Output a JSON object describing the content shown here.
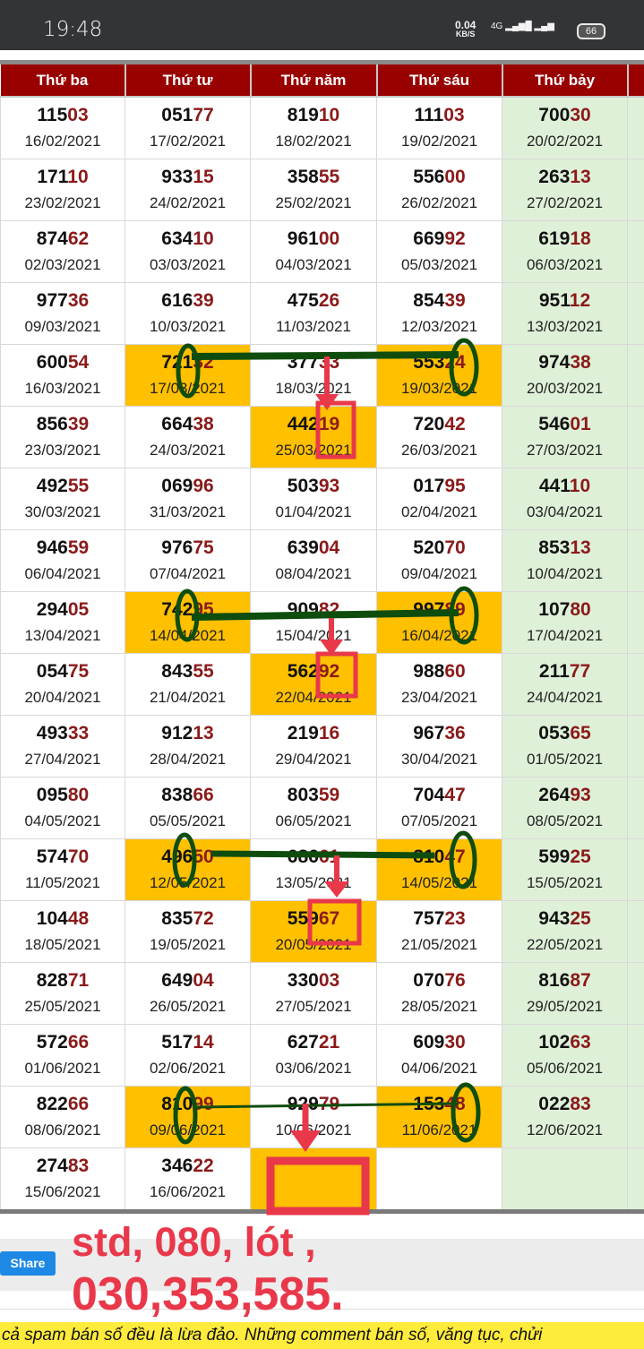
{
  "status_bar": {
    "time": "19:48",
    "speed": "0.04",
    "speed_unit": "KB/S",
    "network": "4G",
    "battery": "66"
  },
  "table": {
    "headers": [
      "Thứ ba",
      "Thứ tư",
      "Thứ năm",
      "Thứ sáu",
      "Thứ bảy",
      ""
    ],
    "colors": {
      "header_bg": "#990000",
      "highlight": "#ffc000",
      "saturday_bg": "#dff0d8",
      "tail_digits": "#8b1a1a"
    },
    "rows": [
      [
        {
          "num": "11503",
          "date": "16/02/2021"
        },
        {
          "num": "05177",
          "date": "17/02/2021"
        },
        {
          "num": "81910",
          "date": "18/02/2021"
        },
        {
          "num": "11103",
          "date": "19/02/2021"
        },
        {
          "num": "70030",
          "date": "20/02/2021"
        }
      ],
      [
        {
          "num": "17110",
          "date": "23/02/2021"
        },
        {
          "num": "93315",
          "date": "24/02/2021"
        },
        {
          "num": "35855",
          "date": "25/02/2021"
        },
        {
          "num": "55600",
          "date": "26/02/2021"
        },
        {
          "num": "26313",
          "date": "27/02/2021"
        }
      ],
      [
        {
          "num": "87462",
          "date": "02/03/2021"
        },
        {
          "num": "63410",
          "date": "03/03/2021"
        },
        {
          "num": "96100",
          "date": "04/03/2021"
        },
        {
          "num": "66992",
          "date": "05/03/2021"
        },
        {
          "num": "61918",
          "date": "06/03/2021"
        }
      ],
      [
        {
          "num": "97736",
          "date": "09/03/2021"
        },
        {
          "num": "61639",
          "date": "10/03/2021"
        },
        {
          "num": "47526",
          "date": "11/03/2021"
        },
        {
          "num": "85439",
          "date": "12/03/2021"
        },
        {
          "num": "95112",
          "date": "13/03/2021"
        }
      ],
      [
        {
          "num": "60054",
          "date": "16/03/2021"
        },
        {
          "num": "72132",
          "date": "17/03/2021",
          "highlight": true
        },
        {
          "num": "37733",
          "date": "18/03/2021"
        },
        {
          "num": "55324",
          "date": "19/03/2021",
          "highlight": true
        },
        {
          "num": "97438",
          "date": "20/03/2021"
        }
      ],
      [
        {
          "num": "85639",
          "date": "23/03/2021"
        },
        {
          "num": "66438",
          "date": "24/03/2021"
        },
        {
          "num": "44219",
          "date": "25/03/2021",
          "highlight": true
        },
        {
          "num": "72042",
          "date": "26/03/2021"
        },
        {
          "num": "54601",
          "date": "27/03/2021"
        }
      ],
      [
        {
          "num": "49255",
          "date": "30/03/2021"
        },
        {
          "num": "06996",
          "date": "31/03/2021"
        },
        {
          "num": "50393",
          "date": "01/04/2021"
        },
        {
          "num": "01795",
          "date": "02/04/2021"
        },
        {
          "num": "44110",
          "date": "03/04/2021"
        }
      ],
      [
        {
          "num": "94659",
          "date": "06/04/2021"
        },
        {
          "num": "97675",
          "date": "07/04/2021"
        },
        {
          "num": "63904",
          "date": "08/04/2021"
        },
        {
          "num": "52070",
          "date": "09/04/2021"
        },
        {
          "num": "85313",
          "date": "10/04/2021"
        }
      ],
      [
        {
          "num": "29405",
          "date": "13/04/2021"
        },
        {
          "num": "74295",
          "date": "14/04/2021",
          "highlight": true
        },
        {
          "num": "90982",
          "date": "15/04/2021"
        },
        {
          "num": "99789",
          "date": "16/04/2021",
          "highlight": true
        },
        {
          "num": "10780",
          "date": "17/04/2021"
        }
      ],
      [
        {
          "num": "05475",
          "date": "20/04/2021"
        },
        {
          "num": "84355",
          "date": "21/04/2021"
        },
        {
          "num": "56292",
          "date": "22/04/2021",
          "highlight": true
        },
        {
          "num": "98860",
          "date": "23/04/2021"
        },
        {
          "num": "21177",
          "date": "24/04/2021"
        }
      ],
      [
        {
          "num": "49333",
          "date": "27/04/2021"
        },
        {
          "num": "91213",
          "date": "28/04/2021"
        },
        {
          "num": "21916",
          "date": "29/04/2021"
        },
        {
          "num": "96736",
          "date": "30/04/2021"
        },
        {
          "num": "05365",
          "date": "01/05/2021"
        }
      ],
      [
        {
          "num": "09580",
          "date": "04/05/2021"
        },
        {
          "num": "83866",
          "date": "05/05/2021"
        },
        {
          "num": "80359",
          "date": "06/05/2021"
        },
        {
          "num": "70447",
          "date": "07/05/2021"
        },
        {
          "num": "26493",
          "date": "08/05/2021"
        }
      ],
      [
        {
          "num": "57470",
          "date": "11/05/2021"
        },
        {
          "num": "49650",
          "date": "12/05/2021",
          "highlight": true
        },
        {
          "num": "68661",
          "date": "13/05/2021"
        },
        {
          "num": "81047",
          "date": "14/05/2021",
          "highlight": true
        },
        {
          "num": "59925",
          "date": "15/05/2021"
        }
      ],
      [
        {
          "num": "10448",
          "date": "18/05/2021"
        },
        {
          "num": "83572",
          "date": "19/05/2021"
        },
        {
          "num": "55967",
          "date": "20/05/2021",
          "highlight": true
        },
        {
          "num": "75723",
          "date": "21/05/2021"
        },
        {
          "num": "94325",
          "date": "22/05/2021"
        }
      ],
      [
        {
          "num": "82871",
          "date": "25/05/2021"
        },
        {
          "num": "64904",
          "date": "26/05/2021"
        },
        {
          "num": "33003",
          "date": "27/05/2021"
        },
        {
          "num": "07076",
          "date": "28/05/2021"
        },
        {
          "num": "81687",
          "date": "29/05/2021"
        }
      ],
      [
        {
          "num": "57266",
          "date": "01/06/2021"
        },
        {
          "num": "51714",
          "date": "02/06/2021"
        },
        {
          "num": "62721",
          "date": "03/06/2021"
        },
        {
          "num": "60930",
          "date": "04/06/2021"
        },
        {
          "num": "10263",
          "date": "05/06/2021"
        }
      ],
      [
        {
          "num": "82266",
          "date": "08/06/2021"
        },
        {
          "num": "81099",
          "date": "09/06/2021",
          "highlight": true
        },
        {
          "num": "92979",
          "date": "10/06/2021"
        },
        {
          "num": "15348",
          "date": "11/06/2021",
          "highlight": true
        },
        {
          "num": "02283",
          "date": "12/06/2021"
        }
      ],
      [
        {
          "num": "27483",
          "date": "15/06/2021"
        },
        {
          "num": "34622",
          "date": "16/06/2021"
        },
        {
          "num": "",
          "date": "",
          "highlight": true
        },
        {
          "num": "",
          "date": ""
        },
        {
          "num": "",
          "date": ""
        }
      ]
    ]
  },
  "annotation": {
    "line1": "std, 080, lót ,",
    "line2": "030,353,585.",
    "text_color": "#e8384a",
    "circle_color": "#0f4d0f"
  },
  "share_label": "Share",
  "notice": "cả spam bán số đều là lừa đảo. Những comment bán số, văng tục, chửi"
}
